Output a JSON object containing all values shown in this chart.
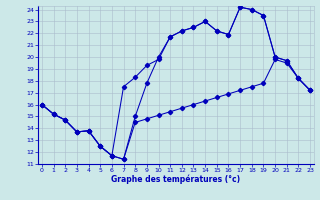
{
  "xlabel": "Graphe des températures (°c)",
  "bg_color": "#cce8e8",
  "grid_color": "#aabccc",
  "line_color": "#0000bb",
  "xlim": [
    -0.3,
    23.3
  ],
  "ylim": [
    11,
    24.3
  ],
  "xticks": [
    0,
    1,
    2,
    3,
    4,
    5,
    6,
    7,
    8,
    9,
    10,
    11,
    12,
    13,
    14,
    15,
    16,
    17,
    18,
    19,
    20,
    21,
    22,
    23
  ],
  "yticks": [
    11,
    12,
    13,
    14,
    15,
    16,
    17,
    18,
    19,
    20,
    21,
    22,
    23,
    24
  ],
  "line1_x": [
    0,
    1,
    2,
    3,
    4,
    5,
    6,
    7,
    8,
    9,
    10,
    11,
    12,
    13,
    14,
    15,
    16,
    17,
    18,
    19,
    20,
    21,
    22,
    23
  ],
  "line1_y": [
    16.0,
    15.2,
    14.7,
    13.7,
    13.8,
    12.5,
    11.7,
    11.4,
    14.5,
    14.8,
    15.1,
    15.4,
    15.7,
    16.0,
    16.3,
    16.6,
    16.9,
    17.2,
    17.5,
    17.8,
    19.8,
    19.5,
    18.2,
    17.2
  ],
  "line2_x": [
    0,
    1,
    2,
    3,
    4,
    5,
    6,
    7,
    8,
    9,
    10,
    11,
    12,
    13,
    14,
    15,
    16,
    17,
    18,
    19,
    20,
    21,
    22,
    23
  ],
  "line2_y": [
    16.0,
    15.2,
    14.7,
    13.7,
    13.8,
    12.5,
    11.7,
    17.5,
    18.3,
    19.3,
    19.8,
    21.7,
    22.2,
    22.5,
    23.0,
    22.2,
    21.9,
    24.2,
    24.0,
    23.5,
    20.0,
    19.7,
    18.2,
    17.2
  ],
  "line3_x": [
    0,
    1,
    2,
    3,
    4,
    5,
    6,
    7,
    8,
    9,
    10,
    11,
    12,
    13,
    14,
    15,
    16,
    17,
    18,
    19,
    20,
    21,
    22,
    23
  ],
  "line3_y": [
    16.0,
    15.2,
    14.7,
    13.7,
    13.8,
    12.5,
    11.7,
    11.4,
    15.0,
    17.8,
    20.0,
    21.7,
    22.2,
    22.5,
    23.0,
    22.2,
    21.9,
    24.2,
    24.0,
    23.5,
    20.0,
    19.7,
    18.2,
    17.2
  ]
}
